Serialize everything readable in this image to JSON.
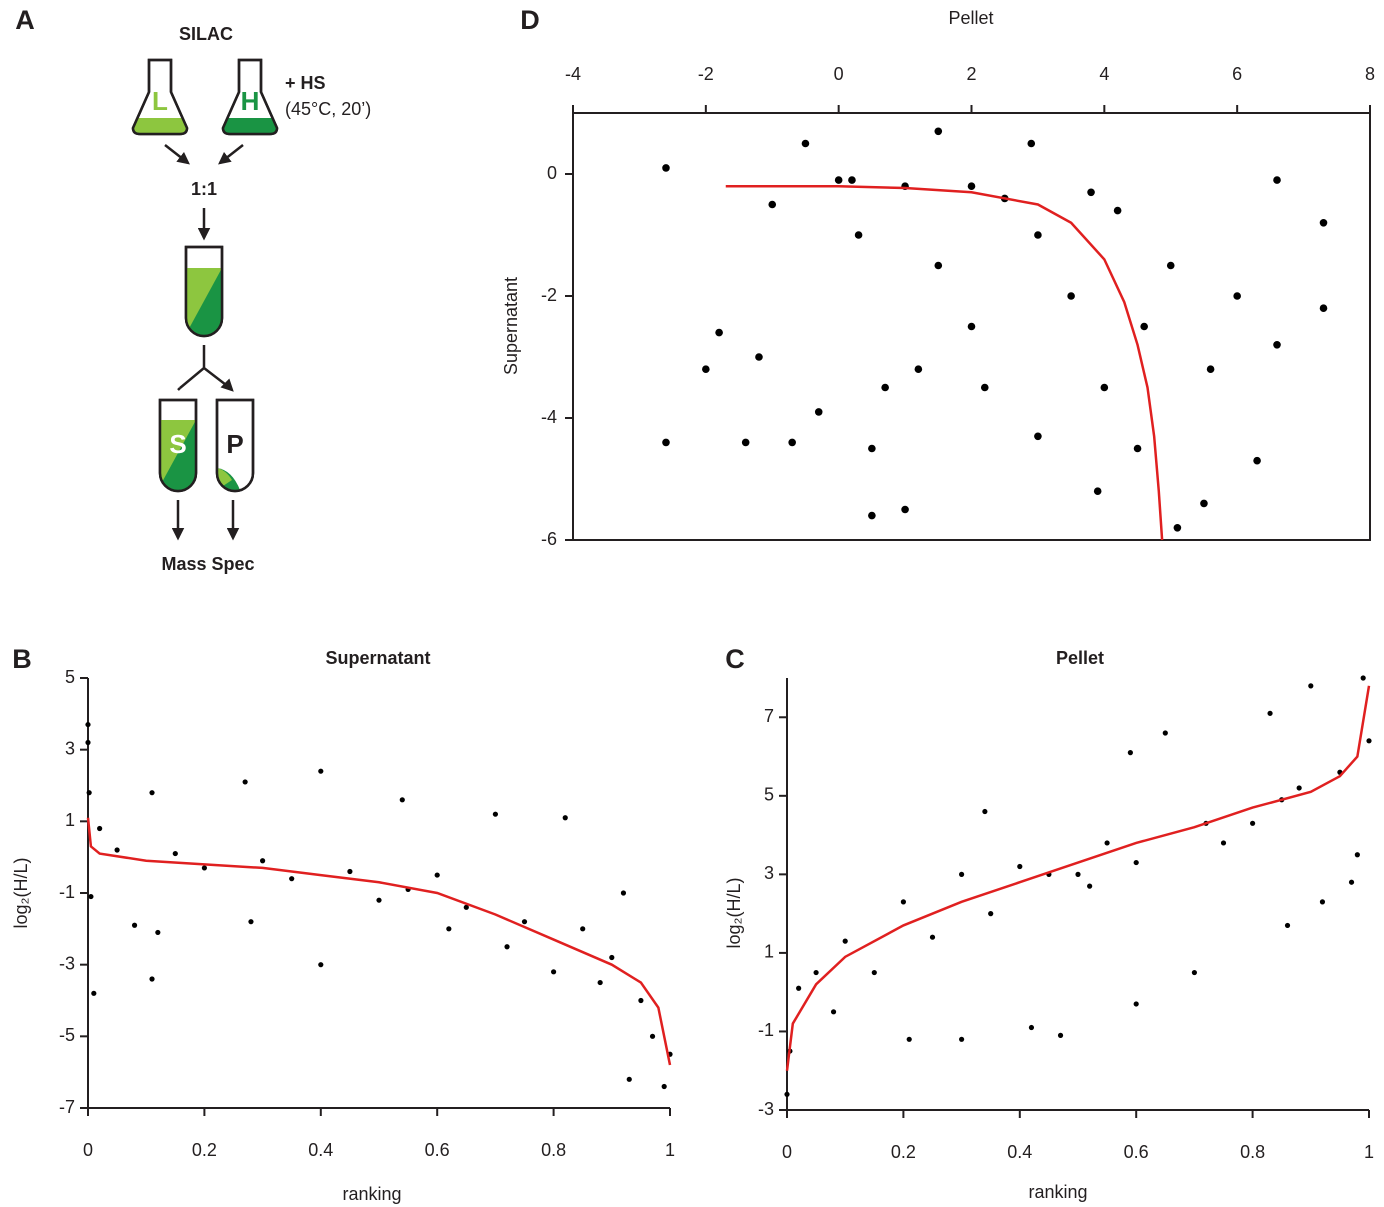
{
  "panel_labels": [
    "A",
    "B",
    "C",
    "D"
  ],
  "diagram": {
    "title": "SILAC",
    "light": "L",
    "heavy": "H",
    "treatment": "+ HS",
    "condition": "(45°C, 20’)",
    "mix": "1:1",
    "supernatant": "S",
    "pellet": "P",
    "readout": "Mass Spec"
  },
  "chart_data": [
    {
      "type": "scatter",
      "title": "Supernatant",
      "xlabel": "ranking",
      "ylabel": "log₂(H/L)",
      "xlim": [
        0,
        1
      ],
      "ylim": [
        -7,
        5
      ],
      "xticks": [
        0,
        0.2,
        0.4,
        0.6,
        0.8,
        1
      ],
      "yticks": [
        -7,
        -5,
        -3,
        -1,
        1,
        3,
        5
      ],
      "frame": false,
      "xaxis": "bottom",
      "series": [
        {
          "mode": "points",
          "color": "#000000",
          "x": [
            0,
            0,
            0.002,
            0.005,
            0.01,
            0.02,
            0.05,
            0.08,
            0.11,
            0.11,
            0.12,
            0.15,
            0.2,
            0.27,
            0.28,
            0.3,
            0.35,
            0.4,
            0.4,
            0.45,
            0.5,
            0.54,
            0.55,
            0.6,
            0.62,
            0.65,
            0.7,
            0.72,
            0.75,
            0.8,
            0.82,
            0.85,
            0.88,
            0.9,
            0.92,
            0.93,
            0.95,
            0.97,
            0.99,
            1.0
          ],
          "values": [
            3.7,
            3.2,
            1.8,
            -1.1,
            -3.8,
            0.8,
            0.2,
            -1.9,
            1.8,
            -3.4,
            -2.1,
            0.1,
            -0.3,
            2.1,
            -1.8,
            -0.1,
            -0.6,
            2.4,
            -3.0,
            -0.4,
            -1.2,
            1.6,
            -0.9,
            -0.5,
            -2.0,
            -1.4,
            1.2,
            -2.5,
            -1.8,
            -3.2,
            1.1,
            -2.0,
            -3.5,
            -2.8,
            -1.0,
            -6.2,
            -4.0,
            -5.0,
            -6.4,
            -5.5
          ]
        },
        {
          "mode": "line",
          "color": "#e02020",
          "x": [
            0,
            0.005,
            0.02,
            0.1,
            0.2,
            0.3,
            0.4,
            0.5,
            0.6,
            0.7,
            0.8,
            0.9,
            0.95,
            0.98,
            1
          ],
          "values": [
            1.1,
            0.3,
            0.1,
            -0.1,
            -0.2,
            -0.3,
            -0.5,
            -0.7,
            -1.0,
            -1.6,
            -2.3,
            -3.0,
            -3.5,
            -4.2,
            -5.8
          ]
        }
      ]
    },
    {
      "type": "scatter",
      "title": "Pellet",
      "xlabel": "ranking",
      "ylabel": "log₂(H/L)",
      "xlim": [
        0,
        1
      ],
      "ylim": [
        -3,
        8
      ],
      "xticks": [
        0,
        0.2,
        0.4,
        0.6,
        0.8,
        1
      ],
      "yticks": [
        -3,
        -1,
        1,
        3,
        5,
        7
      ],
      "frame": false,
      "xaxis": "bottom",
      "series": [
        {
          "mode": "points",
          "color": "#000000",
          "x": [
            0,
            0.005,
            0.02,
            0.05,
            0.08,
            0.1,
            0.15,
            0.2,
            0.21,
            0.25,
            0.3,
            0.3,
            0.35,
            0.34,
            0.4,
            0.42,
            0.45,
            0.47,
            0.5,
            0.52,
            0.55,
            0.59,
            0.6,
            0.6,
            0.65,
            0.7,
            0.72,
            0.75,
            0.8,
            0.83,
            0.85,
            0.86,
            0.88,
            0.9,
            0.92,
            0.95,
            0.97,
            0.98,
            0.99,
            1.0
          ],
          "values": [
            -2.6,
            -1.5,
            0.1,
            0.5,
            -0.5,
            1.3,
            0.5,
            2.3,
            -1.2,
            1.4,
            -1.2,
            3.0,
            2.0,
            4.6,
            3.2,
            -0.9,
            3.0,
            -1.1,
            3.0,
            2.7,
            3.8,
            6.1,
            3.3,
            -0.3,
            6.6,
            0.5,
            4.3,
            3.8,
            4.3,
            7.1,
            4.9,
            1.7,
            5.2,
            7.8,
            2.3,
            5.6,
            2.8,
            3.5,
            8.0,
            6.4
          ]
        },
        {
          "mode": "line",
          "color": "#e02020",
          "x": [
            0,
            0.01,
            0.05,
            0.1,
            0.2,
            0.3,
            0.4,
            0.5,
            0.6,
            0.7,
            0.8,
            0.9,
            0.95,
            0.98,
            1
          ],
          "values": [
            -2,
            -0.8,
            0.2,
            0.9,
            1.7,
            2.3,
            2.8,
            3.3,
            3.8,
            4.2,
            4.7,
            5.1,
            5.5,
            6.0,
            7.8
          ]
        }
      ]
    },
    {
      "type": "scatter",
      "xlabel": "Pellet",
      "ylabel": "Supernatant",
      "xlim": [
        -4,
        8
      ],
      "ylim": [
        -6,
        1
      ],
      "xticks": [
        -4,
        -2,
        0,
        2,
        4,
        6,
        8
      ],
      "yticks": [
        -6,
        -4,
        -2,
        0
      ],
      "frame": true,
      "xaxis": "top",
      "series": [
        {
          "mode": "points",
          "color": "#000000",
          "x": [
            -2.6,
            -2.6,
            -2.0,
            -1.8,
            -1.4,
            -1.2,
            -1.0,
            -0.7,
            -0.5,
            -0.3,
            0,
            0.2,
            0.3,
            0.5,
            0.5,
            0.7,
            1.0,
            1.0,
            1.2,
            1.5,
            1.5,
            2,
            2,
            2.2,
            2.5,
            2.9,
            3,
            3,
            3.5,
            3.8,
            3.9,
            4,
            4.2,
            4.5,
            4.6,
            5,
            5.1,
            5.5,
            5.6,
            6,
            6.3,
            6.6,
            6.6,
            7.3,
            7.3
          ],
          "values": [
            0.1,
            -4.4,
            -3.2,
            -2.6,
            -4.4,
            -3.0,
            -0.5,
            -4.4,
            0.5,
            -3.9,
            -0.1,
            -0.1,
            -1.0,
            -5.6,
            -4.5,
            -3.5,
            -5.5,
            -0.2,
            -3.2,
            0.7,
            -1.5,
            -0.2,
            -2.5,
            -3.5,
            -0.4,
            0.5,
            -4.3,
            -1.0,
            -2.0,
            -0.3,
            -5.2,
            -3.5,
            -0.6,
            -4.5,
            -2.5,
            -1.5,
            -5.8,
            -5.4,
            -3.2,
            -2.0,
            -4.7,
            -2.8,
            -0.1,
            -0.8,
            -2.2
          ]
        },
        {
          "mode": "line",
          "color": "#e02020",
          "x": [
            -1.7,
            0,
            1,
            2,
            3,
            3.5,
            4,
            4.3,
            4.5,
            4.65,
            4.75,
            4.82,
            4.87
          ],
          "values": [
            -0.2,
            -0.2,
            -0.23,
            -0.3,
            -0.5,
            -0.8,
            -1.4,
            -2.1,
            -2.8,
            -3.5,
            -4.3,
            -5.2,
            -6
          ]
        }
      ]
    }
  ]
}
